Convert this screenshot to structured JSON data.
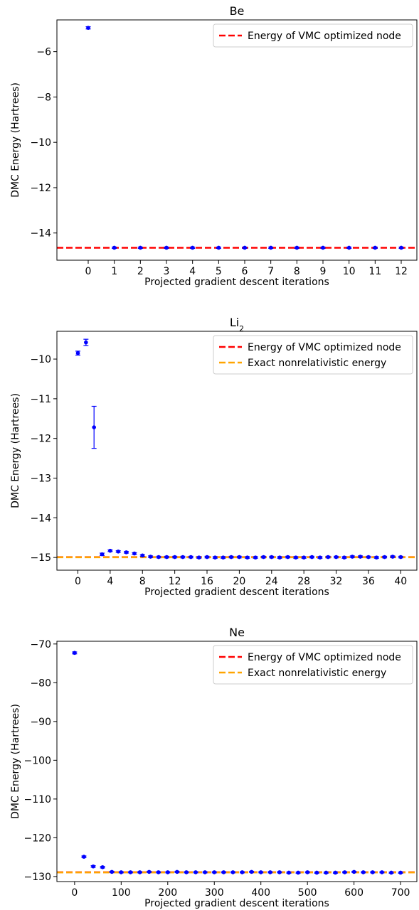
{
  "colors": {
    "points": "#0000ff",
    "vmc_line": "#ff0000",
    "exact_line": "#ffa500"
  },
  "chart_data": [
    {
      "type": "scatter",
      "title": "Be",
      "xlabel": "Projected gradient descent iterations",
      "ylabel": "DMC Energy (Hartrees)",
      "xlim": [
        -1.2,
        12.6
      ],
      "ylim": [
        -15.2,
        -4.6
      ],
      "xticks": [
        0,
        1,
        2,
        3,
        4,
        5,
        6,
        7,
        8,
        9,
        10,
        11,
        12
      ],
      "yticks": [
        -14,
        -12,
        -10,
        -8,
        -6
      ],
      "legend_position": "top-right",
      "series": [
        {
          "kind": "points",
          "x": [
            0,
            1,
            2,
            3,
            4,
            5,
            6,
            7,
            8,
            9,
            10,
            11,
            12
          ],
          "y": [
            -4.95,
            -14.65,
            -14.65,
            -14.65,
            -14.65,
            -14.65,
            -14.65,
            -14.65,
            -14.65,
            -14.65,
            -14.65,
            -14.65,
            -14.65
          ],
          "err": [
            0.05,
            0.03,
            0.03,
            0.03,
            0.03,
            0.03,
            0.03,
            0.03,
            0.03,
            0.03,
            0.03,
            0.03,
            0.03
          ]
        }
      ],
      "hlines": [
        {
          "name": "Energy of VMC optimized node",
          "y": -14.65,
          "color": "#ff0000"
        }
      ]
    },
    {
      "type": "scatter",
      "title": "Li",
      "title_subscript": "2",
      "xlabel": "Projected gradient descent iterations",
      "ylabel": "DMC Energy (Hartrees)",
      "xlim": [
        -2.6,
        42.0
      ],
      "ylim": [
        -15.32,
        -9.3
      ],
      "xticks": [
        0,
        4,
        8,
        12,
        16,
        20,
        24,
        28,
        32,
        36,
        40
      ],
      "yticks": [
        -15,
        -14,
        -13,
        -12,
        -11,
        -10
      ],
      "legend_position": "top-right",
      "series": [
        {
          "kind": "points",
          "x": [
            0,
            1,
            2,
            3,
            4,
            5,
            6,
            7,
            8,
            9,
            10,
            11,
            12,
            13,
            14,
            15,
            16,
            17,
            18,
            19,
            20,
            21,
            22,
            23,
            24,
            25,
            26,
            27,
            28,
            29,
            30,
            31,
            32,
            33,
            34,
            35,
            36,
            37,
            38,
            39,
            40
          ],
          "y": [
            -9.85,
            -9.58,
            -11.72,
            -14.92,
            -14.83,
            -14.85,
            -14.87,
            -14.9,
            -14.95,
            -14.98,
            -14.99,
            -14.99,
            -14.99,
            -14.99,
            -14.99,
            -15.0,
            -14.99,
            -15.0,
            -15.0,
            -14.99,
            -14.99,
            -15.0,
            -15.0,
            -14.99,
            -14.99,
            -15.0,
            -14.99,
            -15.0,
            -15.0,
            -14.99,
            -15.0,
            -14.99,
            -14.99,
            -15.0,
            -14.98,
            -14.98,
            -14.99,
            -15.0,
            -14.99,
            -14.98,
            -14.99
          ],
          "err": [
            0.05,
            0.08,
            0.53,
            0.03,
            0.02,
            0.02,
            0.02,
            0.02,
            0.02,
            0.02,
            0.02,
            0.02,
            0.02,
            0.02,
            0.02,
            0.02,
            0.02,
            0.02,
            0.02,
            0.02,
            0.02,
            0.02,
            0.02,
            0.02,
            0.02,
            0.02,
            0.02,
            0.02,
            0.02,
            0.02,
            0.02,
            0.02,
            0.02,
            0.02,
            0.02,
            0.02,
            0.02,
            0.02,
            0.02,
            0.02,
            0.02
          ]
        }
      ],
      "hlines": [
        {
          "name": "Energy of VMC optimized node",
          "y": -14.99,
          "color": "#ff0000"
        },
        {
          "name": "Exact nonrelativistic energy",
          "y": -14.995,
          "color": "#ffa500"
        }
      ]
    },
    {
      "type": "scatter",
      "title": "Ne",
      "xlabel": "Projected gradient descent iterations",
      "ylabel": "DMC Energy (Hartrees)",
      "xlim": [
        -38,
        735
      ],
      "ylim": [
        -131.3,
        -69.3
      ],
      "xticks": [
        0,
        100,
        200,
        300,
        400,
        500,
        600,
        700
      ],
      "yticks": [
        -130,
        -120,
        -110,
        -100,
        -90,
        -80,
        -70
      ],
      "legend_position": "top-right",
      "series": [
        {
          "kind": "points",
          "x": [
            0,
            20,
            40,
            60,
            80,
            100,
            120,
            140,
            160,
            180,
            200,
            220,
            240,
            260,
            280,
            300,
            320,
            340,
            360,
            380,
            400,
            420,
            440,
            460,
            480,
            500,
            520,
            540,
            560,
            580,
            600,
            620,
            640,
            660,
            680,
            700
          ],
          "y": [
            -72.3,
            -124.9,
            -127.4,
            -127.6,
            -128.8,
            -128.9,
            -128.9,
            -128.9,
            -128.8,
            -128.9,
            -128.9,
            -128.8,
            -128.9,
            -128.9,
            -128.9,
            -128.9,
            -128.9,
            -128.9,
            -128.9,
            -128.8,
            -128.9,
            -128.9,
            -128.9,
            -129.0,
            -129.0,
            -128.9,
            -129.0,
            -129.0,
            -129.0,
            -128.9,
            -128.8,
            -128.9,
            -128.9,
            -128.9,
            -129.0,
            -129.0
          ],
          "err": [
            0.25,
            0.2,
            0.2,
            0.2,
            0.15,
            0.15,
            0.15,
            0.15,
            0.15,
            0.15,
            0.15,
            0.15,
            0.15,
            0.15,
            0.15,
            0.15,
            0.15,
            0.15,
            0.15,
            0.15,
            0.15,
            0.15,
            0.15,
            0.15,
            0.15,
            0.15,
            0.15,
            0.15,
            0.15,
            0.15,
            0.15,
            0.15,
            0.15,
            0.15,
            0.15,
            0.15
          ]
        }
      ],
      "hlines": [
        {
          "name": "Energy of VMC optimized node",
          "y": -128.9,
          "color": "#ff0000"
        },
        {
          "name": "Exact nonrelativistic energy",
          "y": -128.94,
          "color": "#ffa500"
        }
      ]
    }
  ]
}
